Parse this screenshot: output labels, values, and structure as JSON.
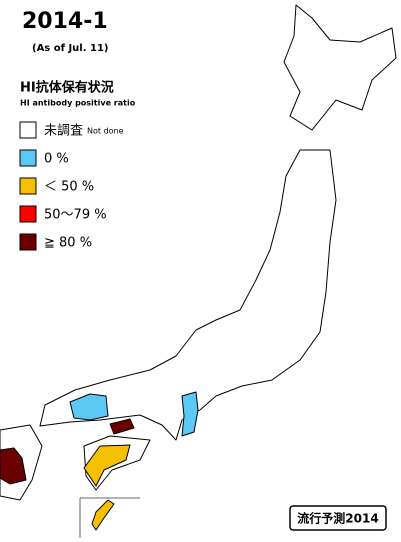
{
  "header": {
    "title": "2014-1",
    "subtitle": "(As of Jul. 11)"
  },
  "legend": {
    "heading": "HI抗体保有状況",
    "subheading": "HI antibody positive ratio",
    "items": [
      {
        "label": "未調査",
        "sublabel": "Not done",
        "color": "#ffffff"
      },
      {
        "label": "0 %",
        "color": "#5bc8f5"
      },
      {
        "label": "＜ 50 %",
        "color": "#f5c000"
      },
      {
        "label": "50～79 %",
        "color": "#ff0000"
      },
      {
        "label": "≧ 80 %",
        "color": "#6b0000"
      }
    ]
  },
  "footer": {
    "label": "流行予測2014"
  }
}
